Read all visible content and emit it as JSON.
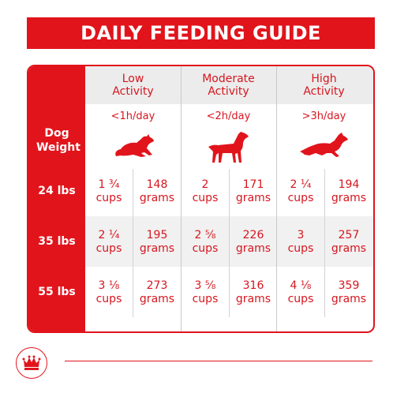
{
  "title": "DAILY FEEDING GUIDE",
  "weight_header": "Dog Weight",
  "columns": [
    {
      "title_line1": "Low",
      "title_line2": "Activity",
      "time": "<1h/day",
      "icon": "lying-dog-icon"
    },
    {
      "title_line1": "Moderate",
      "title_line2": "Activity",
      "time": "<2h/day",
      "icon": "standing-dog-icon"
    },
    {
      "title_line1": "High",
      "title_line2": "Activity",
      "time": ">3h/day",
      "icon": "leaping-dog-icon"
    }
  ],
  "rows": [
    {
      "weight": "24 lbs",
      "cells": [
        {
          "cups_amount": "1 ¾",
          "cups_unit": "cups",
          "grams_amount": "148",
          "grams_unit": "grams"
        },
        {
          "cups_amount": "2",
          "cups_unit": "cups",
          "grams_amount": "171",
          "grams_unit": "grams"
        },
        {
          "cups_amount": "2 ¼",
          "cups_unit": "cups",
          "grams_amount": "194",
          "grams_unit": "grams"
        }
      ]
    },
    {
      "weight": "35 lbs",
      "cells": [
        {
          "cups_amount": "2 ¼",
          "cups_unit": "cups",
          "grams_amount": "195",
          "grams_unit": "grams"
        },
        {
          "cups_amount": "2 ⅝",
          "cups_unit": "cups",
          "grams_amount": "226",
          "grams_unit": "grams"
        },
        {
          "cups_amount": "3",
          "cups_unit": "cups",
          "grams_amount": "257",
          "grams_unit": "grams"
        }
      ]
    },
    {
      "weight": "55 lbs",
      "cells": [
        {
          "cups_amount": "3 ⅛",
          "cups_unit": "cups",
          "grams_amount": "273",
          "grams_unit": "grams"
        },
        {
          "cups_amount": "3 ⅝",
          "cups_unit": "cups",
          "grams_amount": "316",
          "grams_unit": "grams"
        },
        {
          "cups_amount": "4 ⅛",
          "cups_unit": "cups",
          "grams_amount": "359",
          "grams_unit": "grams"
        }
      ]
    }
  ],
  "logo_icon": "crown-logo-icon",
  "colors": {
    "brand_red": "#e1141c",
    "text_red": "#d6161f",
    "band_grey": "#f1f1f1"
  }
}
